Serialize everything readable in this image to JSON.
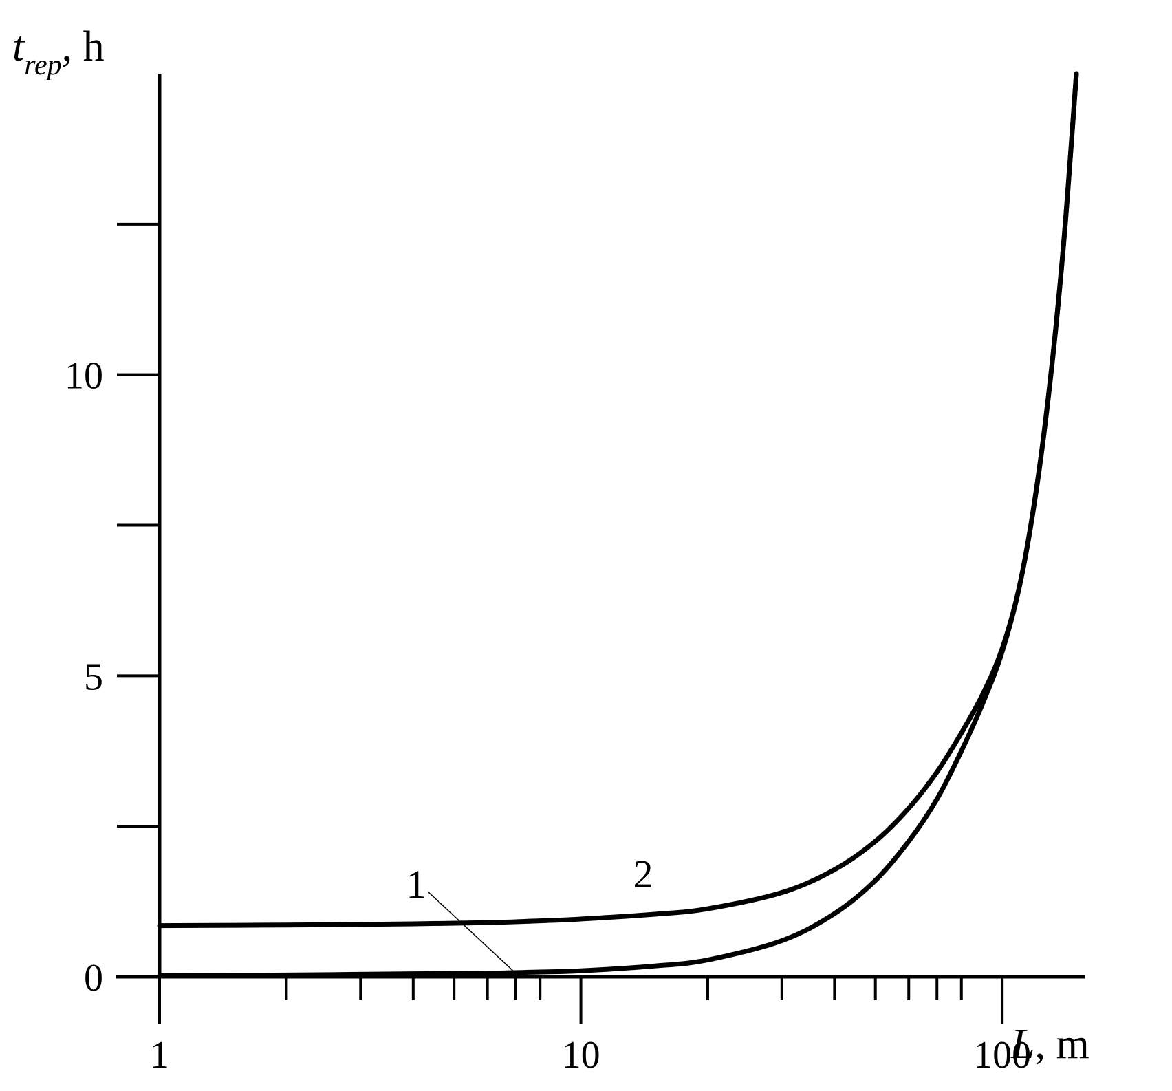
{
  "chart_data": {
    "type": "line",
    "x_scale": "log",
    "xlim": [
      1,
      150
    ],
    "ylim": [
      0,
      15
    ],
    "grid": false,
    "legend": "none",
    "x_ticks": [
      {
        "value": 1,
        "label": "1"
      },
      {
        "value": 10,
        "label": "10"
      },
      {
        "value": 100,
        "label": "100"
      }
    ],
    "x_minor_ticks": [
      2,
      3,
      4,
      5,
      6,
      7,
      8,
      20,
      30,
      40,
      50,
      60,
      70,
      80,
      200
    ],
    "y_ticks": [
      {
        "value": 0,
        "label": "0"
      },
      {
        "value": 2.5,
        "label": ""
      },
      {
        "value": 5,
        "label": "5"
      },
      {
        "value": 7.5,
        "label": ""
      },
      {
        "value": 10,
        "label": "10"
      },
      {
        "value": 12.5,
        "label": ""
      }
    ],
    "xlabel": {
      "symbol": "L",
      "unit": ", m"
    },
    "ylabel": {
      "symbol": "t",
      "subscript": "rep",
      "unit": ", h"
    },
    "series": [
      {
        "name": "1",
        "x": [
          1,
          2,
          4,
          6,
          8,
          10,
          15,
          20,
          30,
          40,
          50,
          60,
          70,
          80,
          90,
          100,
          110,
          120,
          130,
          140,
          150
        ],
        "y": [
          0.02,
          0.03,
          0.05,
          0.06,
          0.08,
          0.1,
          0.18,
          0.28,
          0.6,
          1.05,
          1.6,
          2.25,
          2.95,
          3.75,
          4.55,
          5.4,
          6.5,
          8.0,
          9.9,
          12.2,
          15.0
        ]
      },
      {
        "name": "2",
        "x": [
          1,
          2,
          4,
          6,
          8,
          10,
          15,
          20,
          30,
          40,
          50,
          60,
          70,
          80,
          90,
          100,
          110,
          120,
          130,
          140,
          150
        ],
        "y": [
          0.85,
          0.86,
          0.88,
          0.9,
          0.93,
          0.96,
          1.04,
          1.13,
          1.4,
          1.78,
          2.25,
          2.8,
          3.4,
          4.05,
          4.7,
          5.45,
          6.5,
          8.0,
          9.9,
          12.2,
          15.0
        ]
      }
    ],
    "annotations": [
      {
        "text": "1",
        "series": "1",
        "leader_to_x": 7,
        "leader_to_y": 0.06
      },
      {
        "text": "2",
        "series": "2"
      }
    ]
  }
}
